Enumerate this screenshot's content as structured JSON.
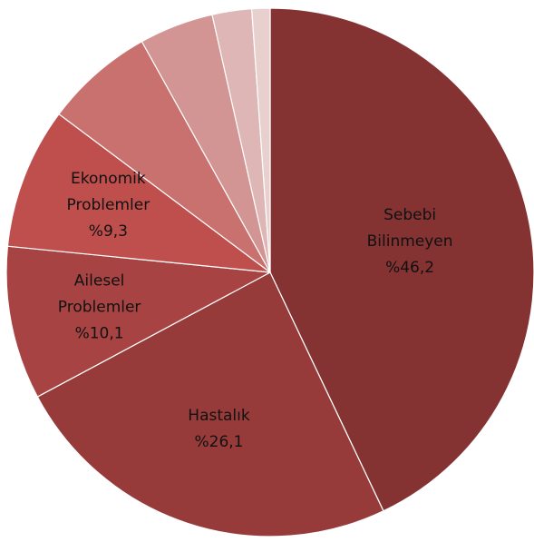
{
  "chart_data": {
    "type": "pie",
    "start_angle_deg": 0,
    "direction": "clockwise",
    "legend": "none",
    "slices": [
      {
        "label_lines": [
          "Sebebi",
          "Bilinmeyen",
          "%46,2"
        ],
        "value": 46.2,
        "color": "#843332"
      },
      {
        "label_lines": [
          "Hastalık",
          "%26,1"
        ],
        "value": 26.1,
        "color": "#963b3a"
      },
      {
        "label_lines": [
          "Ailesel",
          "Problemler",
          "%10,1"
        ],
        "value": 10.1,
        "color": "#a74443"
      },
      {
        "label_lines": [
          "Ekonomik",
          "Problemler",
          "%9,3"
        ],
        "value": 9.3,
        "color": "#bf4f4d"
      },
      {
        "label_lines": [],
        "value": 7.2,
        "color": "#c9716f"
      },
      {
        "label_lines": [],
        "value": 4.9,
        "color": "#d29593"
      },
      {
        "label_lines": [],
        "value": 2.6,
        "color": "#ddb6b5"
      },
      {
        "label_lines": [],
        "value": 1.2,
        "color": "#e8d0cf"
      }
    ]
  }
}
